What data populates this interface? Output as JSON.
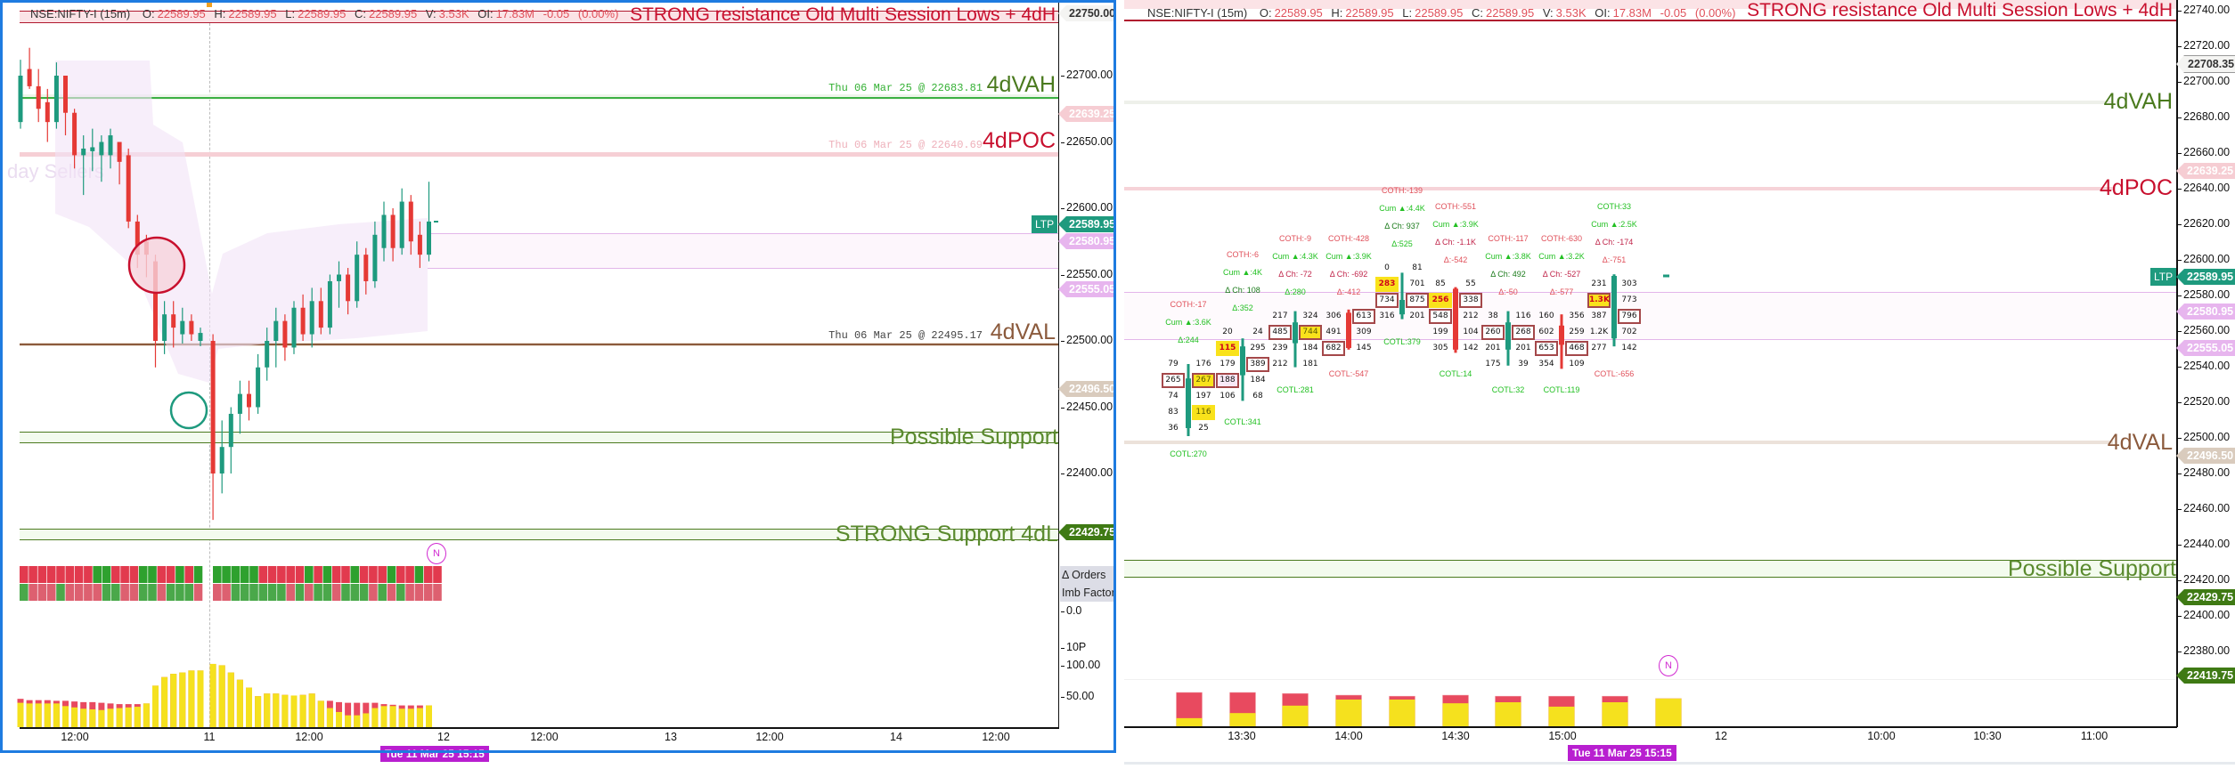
{
  "header": {
    "symbol": "NSE:NIFTY-I (15m)",
    "o_label": "O:",
    "o": "22589.95",
    "h_label": "H:",
    "h": "22589.95",
    "l_label": "L:",
    "l": "22589.95",
    "c_label": "C:",
    "c": "22589.95",
    "v_label": "V:",
    "v": "3.53K",
    "oi_label": "OI:",
    "oi": "17.83M",
    "change": "-0.05",
    "change_pct": "(0.00%)"
  },
  "colors": {
    "accent_border": "#1e7be0",
    "bull": "#1e9a7e",
    "bear": "#e53935",
    "buy_volume": "#f5e11e",
    "sell_volume": "#e84a5f",
    "resistance": "#c8102e",
    "support": "#4a7a1e",
    "tooltip": "#b81fd0"
  },
  "left_chart": {
    "resistance_label": "STRONG resistance Old Multi Session Lows + 4dH",
    "vah_note": "Thu 06 Mar 25 @ 22683.81",
    "vah_label": "4dVAH",
    "poc_note": "Thu 06 Mar 25 @ 22640.69",
    "poc_label": "4dPOC",
    "val_note": "Thu 06 Mar 25 @ 22495.17",
    "val_label": "4dVAL",
    "possible_support_label": "Possible Support",
    "strong_support_label": "STRONG Support 4dL",
    "sellers_label": "day Sellers",
    "price_ticks": [
      "22700.00",
      "22650.00",
      "22600.00",
      "22550.00",
      "22500.00",
      "22450.00",
      "22400.00"
    ],
    "tags": [
      {
        "text": "22750.00",
        "kind": "outline"
      },
      {
        "text": "22639.25",
        "kind": "pink"
      },
      {
        "text": "22589.95",
        "kind": "ltp"
      },
      {
        "text": "22580.95",
        "kind": "lilac"
      },
      {
        "text": "22555.05",
        "kind": "lilac"
      },
      {
        "text": "22496.50",
        "kind": "beige"
      },
      {
        "text": "22429.75",
        "kind": "green"
      }
    ],
    "ltp_label": "LTP",
    "imbalance_labels": {
      "orders": "Δ Orders",
      "factor": "Imb Factor",
      "zero": "0.0"
    },
    "volume_ticks": {
      "tp": "10P",
      "hundred": "100.00",
      "fifty": "50.00"
    },
    "time_labels": [
      "12:00",
      "11",
      "12:00",
      "12",
      "12:00",
      "13",
      "12:00",
      "14",
      "12:00"
    ],
    "cursor_time": "Tue 11 Mar 25 15:15",
    "news_marker": "N",
    "candles": [
      [
        22665,
        22712,
        22660,
        22700
      ],
      [
        22705,
        22721,
        22690,
        22692
      ],
      [
        22692,
        22705,
        22665,
        22675
      ],
      [
        22680,
        22690,
        22650,
        22665
      ],
      [
        22665,
        22710,
        22660,
        22700
      ],
      [
        22700,
        22700,
        22655,
        22672
      ],
      [
        22672,
        22675,
        22630,
        22640
      ],
      [
        22640,
        22655,
        22610,
        22645
      ],
      [
        22643,
        22660,
        22628,
        22646
      ],
      [
        22640,
        22655,
        22620,
        22650
      ],
      [
        22640,
        22660,
        22630,
        22655
      ],
      [
        22650,
        22650,
        22618,
        22635
      ],
      [
        22640,
        22645,
        22585,
        22590
      ],
      [
        22590,
        22595,
        22555,
        22565
      ],
      [
        22575,
        22580,
        22548,
        22565
      ],
      [
        22560,
        22565,
        22480,
        22500
      ],
      [
        22500,
        22530,
        22490,
        22520
      ],
      [
        22520,
        22530,
        22495,
        22510
      ],
      [
        22505,
        22525,
        22498,
        22515
      ],
      [
        22515,
        22520,
        22500,
        22505
      ],
      [
        22500,
        22510,
        22496,
        22506
      ],
      [
        22500,
        22505,
        22365,
        22400
      ],
      [
        22400,
        22440,
        22385,
        22420
      ],
      [
        22420,
        22450,
        22400,
        22445
      ],
      [
        22445,
        22470,
        22430,
        22460
      ],
      [
        22460,
        22470,
        22440,
        22450
      ],
      [
        22450,
        22490,
        22445,
        22480
      ],
      [
        22480,
        22510,
        22470,
        22500
      ],
      [
        22500,
        22525,
        22480,
        22515
      ],
      [
        22515,
        22520,
        22485,
        22495
      ],
      [
        22495,
        22530,
        22490,
        22525
      ],
      [
        22525,
        22535,
        22500,
        22505
      ],
      [
        22505,
        22540,
        22495,
        22530
      ],
      [
        22530,
        22540,
        22505,
        22510
      ],
      [
        22510,
        22550,
        22505,
        22545
      ],
      [
        22545,
        22560,
        22525,
        22550
      ],
      [
        22550,
        22555,
        22520,
        22530
      ],
      [
        22530,
        22575,
        22525,
        22565
      ],
      [
        22565,
        22570,
        22535,
        22545
      ],
      [
        22545,
        22590,
        22540,
        22580
      ],
      [
        22570,
        22605,
        22560,
        22595
      ],
      [
        22595,
        22600,
        22560,
        22570
      ],
      [
        22570,
        22615,
        22565,
        22605
      ],
      [
        22605,
        22610,
        22565,
        22575
      ],
      [
        22580,
        22590,
        22555,
        22565
      ],
      [
        22565,
        22620,
        22560,
        22590
      ]
    ],
    "volume": [
      [
        43,
        37
      ],
      [
        41,
        36
      ],
      [
        41,
        36
      ],
      [
        41,
        36
      ],
      [
        40,
        36
      ],
      [
        40,
        32
      ],
      [
        39,
        30
      ],
      [
        38,
        28
      ],
      [
        38,
        27
      ],
      [
        37,
        26
      ],
      [
        36,
        28
      ],
      [
        35,
        29
      ],
      [
        35,
        30
      ],
      [
        35,
        31
      ],
      [
        36,
        36
      ],
      [
        63,
        63
      ],
      [
        76,
        76
      ],
      [
        81,
        81
      ],
      [
        83,
        83
      ],
      [
        86,
        86
      ],
      [
        86,
        86
      ],
      [
        96,
        96
      ],
      [
        94,
        94
      ],
      [
        83,
        83
      ],
      [
        72,
        72
      ],
      [
        60,
        60
      ],
      [
        47,
        47
      ],
      [
        51,
        51
      ],
      [
        51,
        51
      ],
      [
        49,
        49
      ],
      [
        48,
        48
      ],
      [
        49,
        49
      ],
      [
        51,
        51
      ],
      [
        40,
        40
      ],
      [
        40,
        29
      ],
      [
        38,
        23
      ],
      [
        37,
        18
      ],
      [
        37,
        18
      ],
      [
        37,
        21
      ],
      [
        37,
        29
      ],
      [
        35,
        32
      ],
      [
        34,
        32
      ],
      [
        33,
        28
      ],
      [
        33,
        28
      ],
      [
        33,
        29
      ],
      [
        33,
        33
      ]
    ],
    "imbalance_rows": [
      [
        -1,
        -1,
        -1,
        -1,
        -1,
        -1,
        -1,
        -1,
        1,
        1,
        -1,
        -1,
        -1,
        1,
        1,
        -1,
        -1,
        1,
        -1,
        1,
        1,
        1,
        1,
        1,
        1,
        -1,
        -1,
        -1,
        -1,
        -1,
        1,
        -1,
        1,
        -1,
        -1,
        1,
        -1,
        -1,
        -1,
        1,
        -1,
        -1,
        1,
        -1,
        -1
      ],
      [
        1,
        -1,
        -1,
        -1,
        1,
        -1,
        -1,
        -1,
        -1,
        1,
        1,
        -1,
        -1,
        1,
        1,
        -1,
        1,
        1,
        1,
        -1,
        -1,
        -1,
        1,
        1,
        1,
        1,
        1,
        1,
        -1,
        1,
        -1,
        1,
        1,
        -1,
        1,
        1,
        1,
        -1,
        1,
        -1,
        1,
        -1,
        -1,
        -1,
        -1
      ]
    ]
  },
  "right_chart": {
    "resistance_label": "STRONG resistance Old Multi Session Lows + 4dH",
    "vah_label": "4dVAH",
    "poc_label": "4dPOC",
    "val_label": "4dVAL",
    "possible_support_label": "Possible Support",
    "price_ticks": [
      "22740.00",
      "22720.00",
      "22700.00",
      "22680.00",
      "22660.00",
      "22640.00",
      "22620.00",
      "22600.00",
      "22580.00",
      "22560.00",
      "22540.00",
      "22520.00",
      "22500.00",
      "22480.00",
      "22460.00",
      "22440.00",
      "22420.00",
      "22400.00",
      "22380.00"
    ],
    "tags": [
      {
        "text": "22708.35",
        "kind": "outline"
      },
      {
        "text": "22639.25",
        "kind": "pink"
      },
      {
        "text": "22589.95",
        "kind": "ltp"
      },
      {
        "text": "22580.95",
        "kind": "lilac"
      },
      {
        "text": "22555.05",
        "kind": "lilac"
      },
      {
        "text": "22496.50",
        "kind": "beige"
      },
      {
        "text": "22429.75",
        "kind": "green"
      },
      {
        "text": "22419.75",
        "kind": "green"
      }
    ],
    "ltp_label": "LTP",
    "time_labels": [
      "13:30",
      "14:00",
      "14:30",
      "15:00",
      "12",
      "10:00",
      "10:30",
      "11:00"
    ],
    "cursor_time": "Tue 11 Mar 25 15:15",
    "news_marker": "N",
    "volume_bars": [
      {
        "total": 1.0,
        "buy": 0.24
      },
      {
        "total": 1.0,
        "buy": 0.39
      },
      {
        "total": 0.97,
        "buy": 0.61
      },
      {
        "total": 0.92,
        "buy": 0.79
      },
      {
        "total": 0.89,
        "buy": 0.79
      },
      {
        "total": 0.92,
        "buy": 0.68
      },
      {
        "total": 0.89,
        "buy": 0.71
      },
      {
        "total": 0.89,
        "buy": 0.58
      },
      {
        "total": 0.89,
        "buy": 0.71
      },
      {
        "total": 0.82,
        "buy": 0.82
      }
    ],
    "footprint": [
      {
        "time": "13:15",
        "open": 22500,
        "high": 22540,
        "low": 22495,
        "close": 22531,
        "top_price": 22540,
        "rows": [
          {
            "bid": "79",
            "ask": "176"
          },
          {
            "bid": "265",
            "ask": "267",
            "bid_hl": "box",
            "ask_hl": "hvn-box"
          },
          {
            "bid": "74",
            "ask": "197"
          },
          {
            "bid": "83",
            "ask": "116",
            "ask_hl": "hvn"
          },
          {
            "bid": "36",
            "ask": "25"
          }
        ],
        "stats": [
          "COTH:-17",
          "Cum ▲:3.6K",
          "Δ:244"
        ],
        "cotl": "COTL:270"
      },
      {
        "time": "13:30",
        "open": 22533,
        "high": 22556,
        "low": 22517,
        "close": 22551,
        "top_price": 22560,
        "rows": [
          {
            "bid": "20",
            "ask": "24"
          },
          {
            "bid": "115",
            "ask": "295",
            "bid_hl": "hvn-red"
          },
          {
            "bid": "179",
            "ask": "389",
            "ask_hl": "box"
          },
          {
            "bid": "188",
            "ask": "184",
            "bid_hl": "box-pink"
          },
          {
            "bid": "106",
            "ask": "68"
          }
        ],
        "stats": [
          "COTH:-6",
          "Cum ▲:4K",
          "Δ Ch: 108",
          "Δ:352"
        ],
        "cotl": "COTL:341"
      },
      {
        "time": "13:45",
        "open": 22553,
        "high": 22573,
        "low": 22538,
        "close": 22566,
        "top_price": 22570,
        "rows": [
          {
            "bid": "217",
            "ask": "324"
          },
          {
            "bid": "485",
            "ask": "744",
            "bid_hl": "box",
            "ask_hl": "hvn-box"
          },
          {
            "bid": "239",
            "ask": "184"
          },
          {
            "bid": "212",
            "ask": "181"
          }
        ],
        "stats": [
          "COTH:-9",
          "Cum ▲:4.3K",
          "Δ Ch: -72",
          "Δ:280"
        ],
        "cotl": "COTL:281"
      },
      {
        "time": "14:00",
        "open": 22572,
        "high": 22574,
        "low": 22549,
        "close": 22550,
        "top_price": 22570,
        "rows": [
          {
            "bid": "306",
            "ask": "613",
            "ask_hl": "box"
          },
          {
            "bid": "491",
            "ask": "309"
          },
          {
            "bid": "682",
            "ask": "145",
            "bid_hl": "box"
          }
        ],
        "stats": [
          "COTH:-428",
          "Cum ▲:3.9K",
          "Δ Ch: -692",
          "Δ:-412"
        ],
        "cotl": "COTL:-547"
      },
      {
        "time": "14:15",
        "open": 22571,
        "high": 22597,
        "low": 22568,
        "close": 22580,
        "top_price": 22600,
        "rows": [
          {
            "bid": "0",
            "ask": "81"
          },
          {
            "bid": "283",
            "ask": "701",
            "bid_hl": "hvn-red"
          },
          {
            "bid": "734",
            "ask": "875",
            "bid_hl": "box",
            "ask_hl": "box"
          },
          {
            "bid": "316",
            "ask": "201"
          }
        ],
        "stats": [
          "COTH:-139",
          "Cum ▲:4.4K",
          "Δ Ch: 937",
          "Δ:525"
        ],
        "cotl": "COTL:379"
      },
      {
        "time": "14:30",
        "open": 22587,
        "high": 22588,
        "low": 22547,
        "close": 22549,
        "top_price": 22590,
        "rows": [
          {
            "bid": "85",
            "ask": "55"
          },
          {
            "bid": "256",
            "ask": "338",
            "bid_hl": "hvn-red",
            "ask_hl": "box"
          },
          {
            "bid": "548",
            "ask": "212",
            "bid_hl": "box"
          },
          {
            "bid": "199",
            "ask": "104"
          },
          {
            "bid": "305",
            "ask": "142"
          }
        ],
        "stats": [
          "COTH:-551",
          "Cum ▲:3.9K",
          "Δ Ch: -1.1K",
          "Δ:-542"
        ],
        "cotl": "COTL:14"
      },
      {
        "time": "14:45",
        "open": 22549,
        "high": 22573,
        "low": 22539,
        "close": 22566,
        "top_price": 22570,
        "rows": [
          {
            "bid": "38",
            "ask": "116"
          },
          {
            "bid": "260",
            "ask": "268",
            "bid_hl": "box",
            "ask_hl": "box"
          },
          {
            "bid": "201",
            "ask": "201"
          },
          {
            "bid": "175",
            "ask": "39"
          }
        ],
        "stats": [
          "COTH:-117",
          "Cum ▲:3.8K",
          "Δ Ch: 492",
          "Δ:-50"
        ],
        "cotl": "COTL:32"
      },
      {
        "time": "15:00",
        "open": 22564,
        "high": 22571,
        "low": 22537,
        "close": 22552,
        "top_price": 22570,
        "rows": [
          {
            "bid": "160",
            "ask": "356"
          },
          {
            "bid": "602",
            "ask": "259"
          },
          {
            "bid": "653",
            "ask": "468",
            "bid_hl": "box",
            "ask_hl": "box"
          },
          {
            "bid": "354",
            "ask": "109"
          }
        ],
        "stats": [
          "COTH:-630",
          "Cum ▲:3.2K",
          "Δ Ch: -527",
          "Δ:-577"
        ],
        "cotl": "COTL:119"
      },
      {
        "time": "15:15",
        "open": 22556,
        "high": 22596,
        "low": 22551,
        "close": 22595,
        "top_price": 22590,
        "rows": [
          {
            "bid": "231",
            "ask": "303"
          },
          {
            "bid": "1.3K",
            "ask": "773",
            "bid_hl": "hvn-red-box"
          },
          {
            "bid": "387",
            "ask": "796",
            "ask_hl": "box"
          },
          {
            "bid": "1.2K",
            "ask": "702"
          },
          {
            "bid": "277",
            "ask": "142"
          }
        ],
        "stats": [
          "COTH:33",
          "Cum ▲:2.5K",
          "Δ Ch: -174",
          "Δ:-751"
        ],
        "cotl": "COTL:-656"
      }
    ]
  }
}
